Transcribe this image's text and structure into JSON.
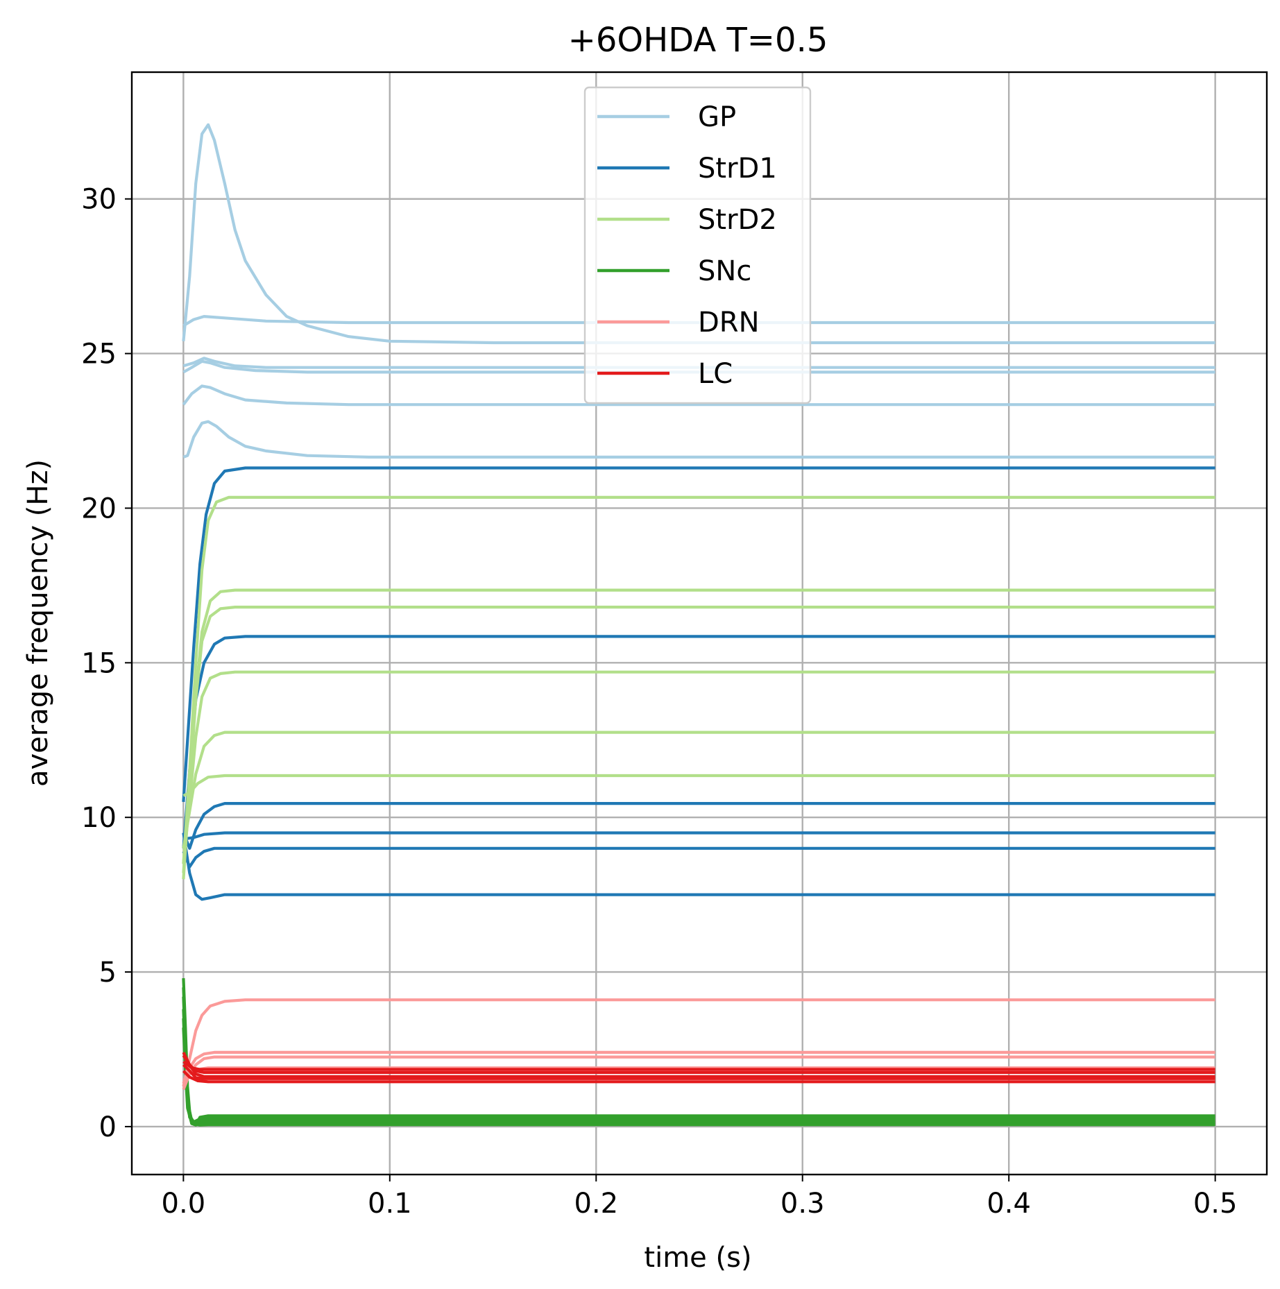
{
  "chart_data": {
    "type": "line",
    "title": "+6OHDA T=0.5",
    "xlabel": "time (s)",
    "ylabel": "average frequency (Hz)",
    "xlim": [
      -0.025,
      0.525
    ],
    "ylim": [
      -1.55,
      34.1
    ],
    "xticks": [
      0.0,
      0.1,
      0.2,
      0.3,
      0.4,
      0.5
    ],
    "xtick_labels": [
      "0.0",
      "0.1",
      "0.2",
      "0.3",
      "0.4",
      "0.5"
    ],
    "yticks": [
      0,
      5,
      10,
      15,
      20,
      25,
      30
    ],
    "ytick_labels": [
      "0",
      "5",
      "10",
      "15",
      "20",
      "25",
      "30"
    ],
    "grid": true,
    "legend_position": "upper center",
    "legend": [
      {
        "label": "GP",
        "color": "#a6cee3"
      },
      {
        "label": "StrD1",
        "color": "#1f78b4"
      },
      {
        "label": "StrD2",
        "color": "#b2df8a"
      },
      {
        "label": "SNc",
        "color": "#33a02c"
      },
      {
        "label": "DRN",
        "color": "#fb9a99"
      },
      {
        "label": "LC",
        "color": "#e31a1c"
      }
    ],
    "series": [
      {
        "name": "GP",
        "color": "#a6cee3",
        "points": [
          [
            0,
            25.4
          ],
          [
            0.003,
            27.5
          ],
          [
            0.006,
            30.5
          ],
          [
            0.009,
            32.1
          ],
          [
            0.012,
            32.4
          ],
          [
            0.015,
            31.9
          ],
          [
            0.02,
            30.5
          ],
          [
            0.025,
            29.0
          ],
          [
            0.03,
            28.0
          ],
          [
            0.04,
            26.9
          ],
          [
            0.05,
            26.2
          ],
          [
            0.06,
            25.9
          ],
          [
            0.08,
            25.55
          ],
          [
            0.1,
            25.4
          ],
          [
            0.15,
            25.35
          ],
          [
            0.5,
            25.35
          ]
        ]
      },
      {
        "name": "GP",
        "color": "#a6cee3",
        "points": [
          [
            0,
            25.9
          ],
          [
            0.005,
            26.1
          ],
          [
            0.01,
            26.2
          ],
          [
            0.02,
            26.15
          ],
          [
            0.04,
            26.05
          ],
          [
            0.08,
            26.0
          ],
          [
            0.5,
            26.0
          ]
        ]
      },
      {
        "name": "GP",
        "color": "#a6cee3",
        "points": [
          [
            0,
            24.6
          ],
          [
            0.005,
            24.7
          ],
          [
            0.01,
            24.85
          ],
          [
            0.015,
            24.75
          ],
          [
            0.025,
            24.6
          ],
          [
            0.04,
            24.55
          ],
          [
            0.5,
            24.55
          ]
        ]
      },
      {
        "name": "GP",
        "color": "#a6cee3",
        "points": [
          [
            0,
            24.4
          ],
          [
            0.004,
            24.55
          ],
          [
            0.009,
            24.75
          ],
          [
            0.013,
            24.7
          ],
          [
            0.02,
            24.55
          ],
          [
            0.035,
            24.45
          ],
          [
            0.06,
            24.4
          ],
          [
            0.5,
            24.4
          ]
        ]
      },
      {
        "name": "GP",
        "color": "#a6cee3",
        "points": [
          [
            0,
            23.35
          ],
          [
            0.004,
            23.7
          ],
          [
            0.009,
            23.95
          ],
          [
            0.013,
            23.9
          ],
          [
            0.02,
            23.7
          ],
          [
            0.03,
            23.5
          ],
          [
            0.05,
            23.4
          ],
          [
            0.08,
            23.35
          ],
          [
            0.5,
            23.35
          ]
        ]
      },
      {
        "name": "GP",
        "color": "#a6cee3",
        "points": [
          [
            0,
            21.65
          ],
          [
            0.002,
            21.7
          ],
          [
            0.005,
            22.3
          ],
          [
            0.009,
            22.75
          ],
          [
            0.012,
            22.8
          ],
          [
            0.016,
            22.65
          ],
          [
            0.022,
            22.3
          ],
          [
            0.03,
            22.0
          ],
          [
            0.04,
            21.85
          ],
          [
            0.06,
            21.7
          ],
          [
            0.09,
            21.65
          ],
          [
            0.5,
            21.65
          ]
        ]
      },
      {
        "name": "StrD1",
        "color": "#1f78b4",
        "points": [
          [
            0,
            10.5
          ],
          [
            0.002,
            12.5
          ],
          [
            0.005,
            15.5
          ],
          [
            0.008,
            18.2
          ],
          [
            0.011,
            19.8
          ],
          [
            0.015,
            20.8
          ],
          [
            0.02,
            21.2
          ],
          [
            0.03,
            21.3
          ],
          [
            0.5,
            21.3
          ]
        ]
      },
      {
        "name": "StrD1",
        "color": "#1f78b4",
        "points": [
          [
            0,
            9.0
          ],
          [
            0.003,
            11.5
          ],
          [
            0.006,
            13.8
          ],
          [
            0.01,
            15.0
          ],
          [
            0.015,
            15.6
          ],
          [
            0.02,
            15.8
          ],
          [
            0.03,
            15.85
          ],
          [
            0.5,
            15.85
          ]
        ]
      },
      {
        "name": "StrD1",
        "color": "#1f78b4",
        "points": [
          [
            0,
            9.5
          ],
          [
            0.003,
            9.0
          ],
          [
            0.006,
            9.6
          ],
          [
            0.01,
            10.1
          ],
          [
            0.015,
            10.35
          ],
          [
            0.02,
            10.45
          ],
          [
            0.5,
            10.45
          ]
        ]
      },
      {
        "name": "StrD1",
        "color": "#1f78b4",
        "points": [
          [
            0,
            9.3
          ],
          [
            0.005,
            9.35
          ],
          [
            0.01,
            9.45
          ],
          [
            0.02,
            9.5
          ],
          [
            0.5,
            9.5
          ]
        ]
      },
      {
        "name": "StrD1",
        "color": "#1f78b4",
        "points": [
          [
            0,
            8.9
          ],
          [
            0.003,
            8.4
          ],
          [
            0.006,
            8.7
          ],
          [
            0.01,
            8.9
          ],
          [
            0.015,
            9.0
          ],
          [
            0.5,
            9.0
          ]
        ]
      },
      {
        "name": "StrD1",
        "color": "#1f78b4",
        "points": [
          [
            0,
            9.5
          ],
          [
            0.003,
            8.2
          ],
          [
            0.006,
            7.5
          ],
          [
            0.009,
            7.35
          ],
          [
            0.013,
            7.4
          ],
          [
            0.02,
            7.5
          ],
          [
            0.5,
            7.5
          ]
        ]
      },
      {
        "name": "StrD2",
        "color": "#b2df8a",
        "points": [
          [
            0,
            8.5
          ],
          [
            0.003,
            11.5
          ],
          [
            0.006,
            15.0
          ],
          [
            0.009,
            18.0
          ],
          [
            0.012,
            19.6
          ],
          [
            0.016,
            20.2
          ],
          [
            0.022,
            20.35
          ],
          [
            0.5,
            20.35
          ]
        ]
      },
      {
        "name": "StrD2",
        "color": "#b2df8a",
        "points": [
          [
            0,
            8.0
          ],
          [
            0.003,
            11.0
          ],
          [
            0.006,
            14.0
          ],
          [
            0.009,
            16.0
          ],
          [
            0.013,
            17.0
          ],
          [
            0.018,
            17.3
          ],
          [
            0.025,
            17.35
          ],
          [
            0.5,
            17.35
          ]
        ]
      },
      {
        "name": "StrD2",
        "color": "#b2df8a",
        "points": [
          [
            0,
            8.2
          ],
          [
            0.003,
            11.0
          ],
          [
            0.006,
            13.8
          ],
          [
            0.009,
            15.7
          ],
          [
            0.013,
            16.5
          ],
          [
            0.018,
            16.75
          ],
          [
            0.025,
            16.8
          ],
          [
            0.5,
            16.8
          ]
        ]
      },
      {
        "name": "StrD2",
        "color": "#b2df8a",
        "points": [
          [
            0,
            8.5
          ],
          [
            0.003,
            10.5
          ],
          [
            0.006,
            12.6
          ],
          [
            0.009,
            13.9
          ],
          [
            0.013,
            14.5
          ],
          [
            0.018,
            14.65
          ],
          [
            0.025,
            14.7
          ],
          [
            0.5,
            14.7
          ]
        ]
      },
      {
        "name": "StrD2",
        "color": "#b2df8a",
        "points": [
          [
            0,
            9.0
          ],
          [
            0.003,
            10.2
          ],
          [
            0.006,
            11.4
          ],
          [
            0.01,
            12.3
          ],
          [
            0.015,
            12.65
          ],
          [
            0.02,
            12.75
          ],
          [
            0.5,
            12.75
          ]
        ]
      },
      {
        "name": "StrD2",
        "color": "#b2df8a",
        "points": [
          [
            0,
            10.7
          ],
          [
            0.003,
            10.8
          ],
          [
            0.007,
            11.1
          ],
          [
            0.012,
            11.3
          ],
          [
            0.02,
            11.35
          ],
          [
            0.5,
            11.35
          ]
        ]
      },
      {
        "name": "SNc",
        "color": "#33a02c",
        "points": [
          [
            0,
            4.8
          ],
          [
            0.001,
            3.2
          ],
          [
            0.002,
            1.3
          ],
          [
            0.003,
            0.5
          ],
          [
            0.004,
            0.1
          ],
          [
            0.006,
            0.05
          ],
          [
            0.008,
            0.3
          ],
          [
            0.012,
            0.35
          ],
          [
            0.5,
            0.35
          ]
        ]
      },
      {
        "name": "SNc",
        "color": "#33a02c",
        "points": [
          [
            0,
            4.5
          ],
          [
            0.001,
            2.8
          ],
          [
            0.002,
            1.0
          ],
          [
            0.003,
            0.35
          ],
          [
            0.005,
            0.15
          ],
          [
            0.008,
            0.25
          ],
          [
            0.012,
            0.28
          ],
          [
            0.5,
            0.28
          ]
        ]
      },
      {
        "name": "SNc",
        "color": "#33a02c",
        "points": [
          [
            0,
            4.2
          ],
          [
            0.001,
            2.5
          ],
          [
            0.002,
            0.9
          ],
          [
            0.003,
            0.3
          ],
          [
            0.005,
            0.15
          ],
          [
            0.01,
            0.2
          ],
          [
            0.5,
            0.2
          ]
        ]
      },
      {
        "name": "SNc",
        "color": "#33a02c",
        "points": [
          [
            0,
            3.8
          ],
          [
            0.001,
            2.2
          ],
          [
            0.002,
            0.8
          ],
          [
            0.004,
            0.2
          ],
          [
            0.006,
            0.1
          ],
          [
            0.01,
            0.14
          ],
          [
            0.5,
            0.14
          ]
        ]
      },
      {
        "name": "SNc",
        "color": "#33a02c",
        "points": [
          [
            0,
            3.5
          ],
          [
            0.001,
            2.0
          ],
          [
            0.002,
            0.7
          ],
          [
            0.004,
            0.15
          ],
          [
            0.007,
            0.08
          ],
          [
            0.012,
            0.1
          ],
          [
            0.5,
            0.1
          ]
        ]
      },
      {
        "name": "SNc",
        "color": "#33a02c",
        "points": [
          [
            0,
            3.2
          ],
          [
            0.001,
            1.8
          ],
          [
            0.002,
            0.6
          ],
          [
            0.004,
            0.1
          ],
          [
            0.008,
            0.05
          ],
          [
            0.012,
            0.06
          ],
          [
            0.5,
            0.06
          ]
        ]
      },
      {
        "name": "DRN",
        "color": "#fb9a99",
        "points": [
          [
            0,
            1.3
          ],
          [
            0.003,
            2.2
          ],
          [
            0.006,
            3.1
          ],
          [
            0.009,
            3.6
          ],
          [
            0.013,
            3.9
          ],
          [
            0.02,
            4.05
          ],
          [
            0.03,
            4.1
          ],
          [
            0.5,
            4.1
          ]
        ]
      },
      {
        "name": "DRN",
        "color": "#fb9a99",
        "points": [
          [
            0,
            1.4
          ],
          [
            0.003,
            1.9
          ],
          [
            0.006,
            2.2
          ],
          [
            0.01,
            2.35
          ],
          [
            0.015,
            2.4
          ],
          [
            0.5,
            2.4
          ]
        ]
      },
      {
        "name": "DRN",
        "color": "#fb9a99",
        "points": [
          [
            0,
            1.2
          ],
          [
            0.003,
            1.7
          ],
          [
            0.006,
            2.0
          ],
          [
            0.01,
            2.2
          ],
          [
            0.015,
            2.25
          ],
          [
            0.5,
            2.25
          ]
        ]
      },
      {
        "name": "DRN",
        "color": "#fb9a99",
        "points": [
          [
            0,
            1.5
          ],
          [
            0.003,
            1.7
          ],
          [
            0.007,
            1.85
          ],
          [
            0.012,
            1.9
          ],
          [
            0.5,
            1.9
          ]
        ]
      },
      {
        "name": "LC",
        "color": "#e31a1c",
        "points": [
          [
            0,
            2.1
          ],
          [
            0.004,
            1.9
          ],
          [
            0.008,
            1.85
          ],
          [
            0.5,
            1.85
          ]
        ]
      },
      {
        "name": "LC",
        "color": "#e31a1c",
        "points": [
          [
            0,
            2.3
          ],
          [
            0.003,
            2.0
          ],
          [
            0.006,
            1.8
          ],
          [
            0.01,
            1.75
          ],
          [
            0.5,
            1.75
          ]
        ]
      },
      {
        "name": "LC",
        "color": "#e31a1c",
        "points": [
          [
            0,
            2.4
          ],
          [
            0.003,
            2.0
          ],
          [
            0.006,
            1.7
          ],
          [
            0.01,
            1.62
          ],
          [
            0.5,
            1.62
          ]
        ]
      },
      {
        "name": "LC",
        "color": "#e31a1c",
        "points": [
          [
            0,
            2.0
          ],
          [
            0.003,
            1.8
          ],
          [
            0.006,
            1.58
          ],
          [
            0.01,
            1.55
          ],
          [
            0.5,
            1.55
          ]
        ]
      },
      {
        "name": "LC",
        "color": "#e31a1c",
        "points": [
          [
            0,
            1.8
          ],
          [
            0.003,
            1.6
          ],
          [
            0.007,
            1.48
          ],
          [
            0.012,
            1.45
          ],
          [
            0.5,
            1.45
          ]
        ]
      }
    ]
  }
}
